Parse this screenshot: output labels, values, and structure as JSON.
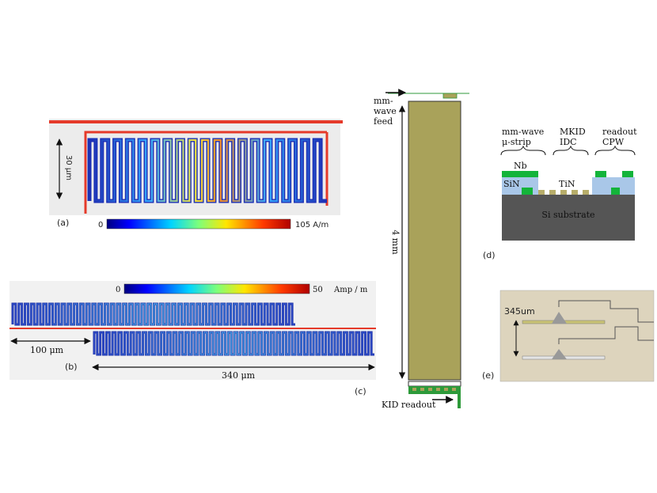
{
  "panel_a": {
    "label": "(a)",
    "dimension": "30 μm",
    "colorbar_min": "0",
    "colorbar_max": "105 A/m",
    "colors": {
      "frame": "#e53a2a",
      "meander": "#1f2fa8",
      "background": "#ececec"
    }
  },
  "panel_b": {
    "label": "(b)",
    "colorbar_min": "0",
    "colorbar_max": "50",
    "unit": "Amp / m",
    "dim_short": "100 μm",
    "dim_long": "340 μm"
  },
  "panel_c": {
    "label": "(c)",
    "feed": "mm-\nwave\nfeed",
    "length": "4 mm",
    "readout": "KID readout",
    "colors": {
      "body": "#a9a25a",
      "readout": "#2d9a3a"
    }
  },
  "panel_d": {
    "label": "(d)",
    "headings": [
      "mm-wave\nμ-strip",
      "MKID\nIDC",
      "readout\nCPW"
    ],
    "nb": "Nb",
    "sin": "SiN",
    "tin": "TiN",
    "substrate": "Si substrate",
    "colors": {
      "nb": "#13b43a",
      "sin": "#a9c7e8",
      "tin": "#b7ad6a",
      "substrate": "#555555"
    }
  },
  "panel_e": {
    "label": "(e)",
    "dimension": "345um",
    "colors": {
      "background": "#ddd4bd"
    }
  }
}
